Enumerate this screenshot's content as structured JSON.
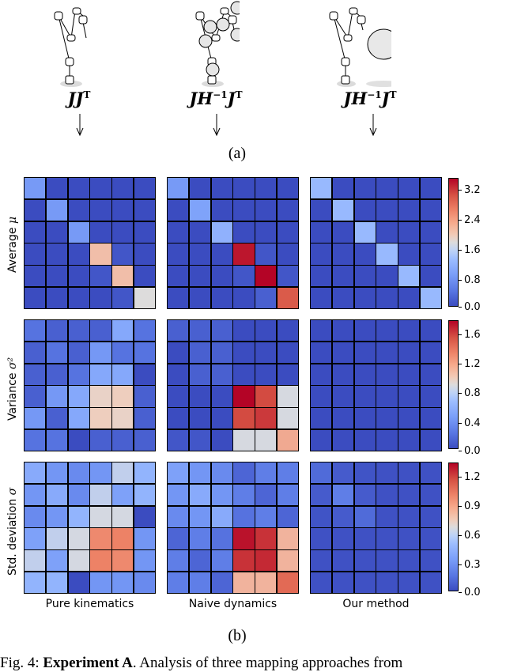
{
  "figure": {
    "part_a": {
      "label": "(a)",
      "columns": [
        {
          "formula_main": "JJ",
          "formula_sup": "T",
          "robot": "kinematic-chain-no-mass-icon"
        },
        {
          "formula_main": "JH",
          "formula_sup_1": "−1",
          "formula_main_2": "J",
          "formula_sup": "T",
          "robot": "kinematic-chain-distributed-mass-icon"
        },
        {
          "formula_main": "JH",
          "formula_sup_1": "−1",
          "formula_main_2": "J",
          "formula_sup": "T",
          "robot": "kinematic-chain-lumped-mass-icon"
        }
      ]
    },
    "part_b": {
      "label": "(b)",
      "row_labels": [
        {
          "text": "Average ",
          "symbol": "μ"
        },
        {
          "text": "Variance ",
          "symbol": "σ²"
        },
        {
          "text": "Std. deviation ",
          "symbol": "σ"
        }
      ],
      "column_labels": [
        "Pure kinematics",
        "Naive dynamics",
        "Our method"
      ],
      "colorbars": [
        {
          "ticks": [
            "3.2",
            "2.4",
            "1.6",
            "0.8",
            "0.0"
          ],
          "max": 3.4
        },
        {
          "ticks": [
            "1.6",
            "1.2",
            "0.8",
            "0.4",
            "0.0"
          ],
          "max": 1.75
        },
        {
          "ticks": [
            "1.2",
            "0.9",
            "0.6",
            "0.3",
            "0.0"
          ],
          "max": 1.35
        }
      ]
    },
    "caption": {
      "prefix": "Fig. 4: ",
      "bold": "Experiment A",
      "rest": ". Analysis of three mapping approaches from"
    }
  },
  "chart_data": [
    {
      "type": "heatmap",
      "title": "Average μ — Pure kinematics",
      "ylabel": "Average μ",
      "xlabel": "Pure kinematics",
      "colormap": "coolwarm",
      "vmin": 0.0,
      "vmax": 3.4,
      "colorbar_ticks": [
        0.0,
        0.8,
        1.6,
        2.4,
        3.2
      ],
      "values": [
        [
          0.8,
          0.0,
          0.0,
          0.0,
          0.0,
          0.0
        ],
        [
          0.0,
          0.8,
          0.0,
          0.0,
          0.0,
          0.0
        ],
        [
          0.0,
          0.0,
          0.8,
          0.0,
          0.0,
          0.0
        ],
        [
          0.0,
          0.0,
          0.0,
          2.2,
          0.1,
          0.0
        ],
        [
          0.0,
          0.0,
          0.0,
          0.1,
          2.2,
          0.0
        ],
        [
          0.0,
          0.0,
          0.0,
          0.0,
          0.1,
          1.7
        ]
      ]
    },
    {
      "type": "heatmap",
      "title": "Average μ — Naive dynamics",
      "xlabel": "Naive dynamics",
      "colormap": "coolwarm",
      "vmin": 0.0,
      "vmax": 3.4,
      "values": [
        [
          0.8,
          0.0,
          0.0,
          0.0,
          0.0,
          0.0
        ],
        [
          0.0,
          0.9,
          0.0,
          0.0,
          0.0,
          0.0
        ],
        [
          0.0,
          0.0,
          1.1,
          0.0,
          0.0,
          0.0
        ],
        [
          0.0,
          0.0,
          0.0,
          3.3,
          0.1,
          0.0
        ],
        [
          0.0,
          0.0,
          0.0,
          0.1,
          3.4,
          0.1
        ],
        [
          0.0,
          0.0,
          0.0,
          0.0,
          0.2,
          2.9
        ]
      ]
    },
    {
      "type": "heatmap",
      "title": "Average μ — Our method",
      "xlabel": "Our method",
      "colormap": "coolwarm",
      "vmin": 0.0,
      "vmax": 3.4,
      "values": [
        [
          1.2,
          0.0,
          0.0,
          0.0,
          0.0,
          0.0
        ],
        [
          0.0,
          1.2,
          0.0,
          0.0,
          0.0,
          0.0
        ],
        [
          0.0,
          0.0,
          1.2,
          0.0,
          0.0,
          0.0
        ],
        [
          0.0,
          0.0,
          0.0,
          1.2,
          0.0,
          0.0
        ],
        [
          0.0,
          0.0,
          0.0,
          0.0,
          1.2,
          0.0
        ],
        [
          0.0,
          0.0,
          0.0,
          0.0,
          0.0,
          1.2
        ]
      ]
    },
    {
      "type": "heatmap",
      "title": "Variance σ² — Pure kinematics",
      "ylabel": "Variance σ²",
      "colormap": "coolwarm",
      "vmin": 0.0,
      "vmax": 1.75,
      "colorbar_ticks": [
        0.0,
        0.4,
        0.8,
        1.2,
        1.6
      ],
      "values": [
        [
          0.2,
          0.1,
          0.1,
          0.1,
          0.5,
          0.2
        ],
        [
          0.1,
          0.2,
          0.1,
          0.4,
          0.2,
          0.2
        ],
        [
          0.1,
          0.1,
          0.2,
          0.5,
          0.5,
          0.0
        ],
        [
          0.1,
          0.4,
          0.5,
          1.0,
          1.05,
          0.1
        ],
        [
          0.4,
          0.1,
          0.5,
          1.05,
          1.0,
          0.1
        ],
        [
          0.2,
          0.2,
          0.0,
          0.1,
          0.1,
          0.1
        ]
      ]
    },
    {
      "type": "heatmap",
      "title": "Variance σ² — Naive dynamics",
      "colormap": "coolwarm",
      "vmin": 0.0,
      "vmax": 1.75,
      "values": [
        [
          0.1,
          0.1,
          0.1,
          0.0,
          0.0,
          0.0
        ],
        [
          0.0,
          0.1,
          0.1,
          0.0,
          0.0,
          0.0
        ],
        [
          0.0,
          0.1,
          0.1,
          0.0,
          0.0,
          0.0
        ],
        [
          0.0,
          0.0,
          0.0,
          1.75,
          1.55,
          0.85
        ],
        [
          0.0,
          0.0,
          0.0,
          1.55,
          1.6,
          0.85
        ],
        [
          0.05,
          0.05,
          0.0,
          0.85,
          0.85,
          1.2
        ]
      ]
    },
    {
      "type": "heatmap",
      "title": "Variance σ² — Our method",
      "colormap": "coolwarm",
      "vmin": 0.0,
      "vmax": 1.75,
      "values": [
        [
          0.0,
          0.0,
          0.0,
          0.0,
          0.0,
          0.0
        ],
        [
          0.0,
          0.0,
          0.0,
          0.0,
          0.0,
          0.0
        ],
        [
          0.0,
          0.0,
          0.0,
          0.0,
          0.0,
          0.0
        ],
        [
          0.0,
          0.0,
          0.0,
          0.0,
          0.0,
          0.0
        ],
        [
          0.0,
          0.0,
          0.0,
          0.0,
          0.0,
          0.0
        ],
        [
          0.0,
          0.0,
          0.0,
          0.0,
          0.0,
          0.0
        ]
      ]
    },
    {
      "type": "heatmap",
      "title": "Std. deviation σ — Pure kinematics",
      "ylabel": "Std. deviation σ",
      "colormap": "coolwarm",
      "vmin": 0.0,
      "vmax": 1.35,
      "colorbar_ticks": [
        0.0,
        0.3,
        0.6,
        0.9,
        1.2
      ],
      "values": [
        [
          0.4,
          0.3,
          0.25,
          0.3,
          0.6,
          0.45
        ],
        [
          0.3,
          0.4,
          0.25,
          0.6,
          0.35,
          0.45
        ],
        [
          0.25,
          0.3,
          0.45,
          0.65,
          0.65,
          0.0
        ],
        [
          0.35,
          0.6,
          0.65,
          1.0,
          1.02,
          0.3
        ],
        [
          0.6,
          0.35,
          0.65,
          1.02,
          1.0,
          0.3
        ],
        [
          0.45,
          0.45,
          0.0,
          0.3,
          0.3,
          0.25
        ]
      ]
    },
    {
      "type": "heatmap",
      "title": "Std. deviation σ — Naive dynamics",
      "colormap": "coolwarm",
      "vmin": 0.0,
      "vmax": 1.35,
      "values": [
        [
          0.35,
          0.3,
          0.25,
          0.1,
          0.2,
          0.2
        ],
        [
          0.3,
          0.4,
          0.3,
          0.2,
          0.1,
          0.2
        ],
        [
          0.25,
          0.3,
          0.4,
          0.15,
          0.2,
          0.1
        ],
        [
          0.1,
          0.2,
          0.15,
          1.32,
          1.25,
          0.9
        ],
        [
          0.2,
          0.1,
          0.2,
          1.25,
          1.27,
          0.9
        ],
        [
          0.2,
          0.2,
          0.1,
          0.9,
          0.9,
          1.1
        ]
      ]
    },
    {
      "type": "heatmap",
      "title": "Std. deviation σ — Our method",
      "colormap": "coolwarm",
      "vmin": 0.0,
      "vmax": 1.35,
      "values": [
        [
          0.12,
          0.06,
          0.03,
          0.02,
          0.02,
          0.02
        ],
        [
          0.06,
          0.2,
          0.06,
          0.02,
          0.02,
          0.02
        ],
        [
          0.03,
          0.06,
          0.12,
          0.02,
          0.02,
          0.02
        ],
        [
          0.02,
          0.02,
          0.02,
          0.02,
          0.02,
          0.02
        ],
        [
          0.02,
          0.02,
          0.02,
          0.02,
          0.02,
          0.02
        ],
        [
          0.02,
          0.02,
          0.02,
          0.02,
          0.02,
          0.02
        ]
      ]
    }
  ]
}
